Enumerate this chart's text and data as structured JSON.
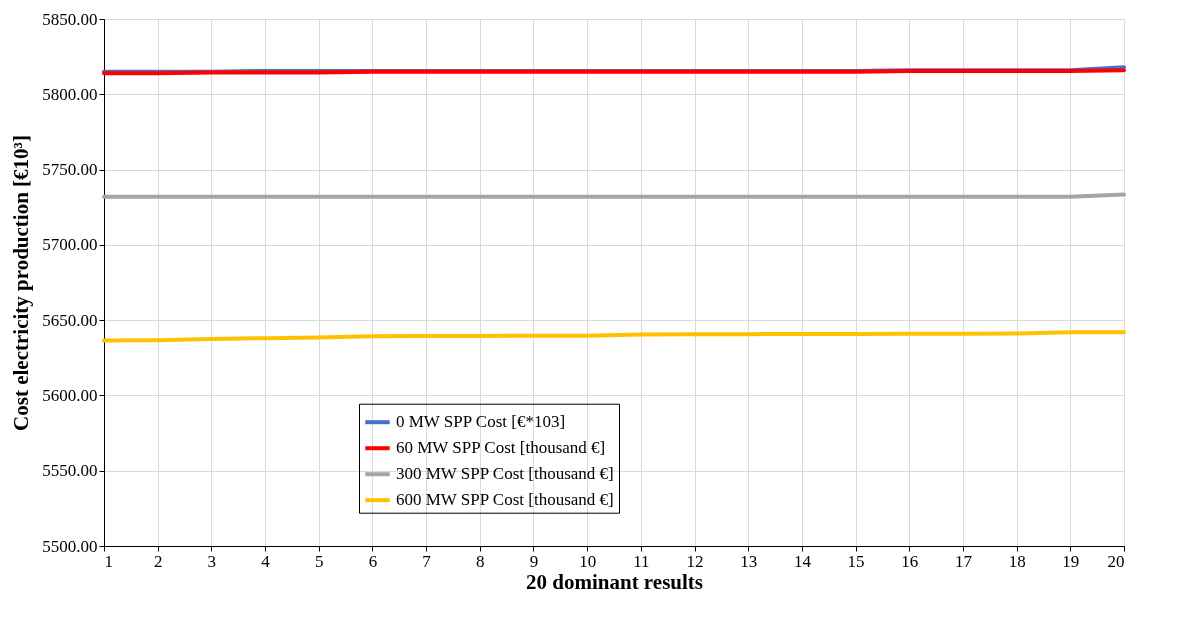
{
  "chart_data": {
    "type": "line",
    "xlabel": "20 dominant results",
    "ylabel": "Cost electricity production [€10³]",
    "x": [
      1,
      2,
      3,
      4,
      5,
      6,
      7,
      8,
      9,
      10,
      11,
      12,
      13,
      14,
      15,
      16,
      17,
      18,
      19,
      20
    ],
    "xlim": [
      1,
      20
    ],
    "xticks": [
      1,
      2,
      3,
      4,
      5,
      6,
      7,
      8,
      9,
      10,
      11,
      12,
      13,
      14,
      15,
      16,
      17,
      18,
      19,
      20
    ],
    "ylim": [
      5500,
      5850
    ],
    "yticks": [
      {
        "value": 5500,
        "label": "5500.00"
      },
      {
        "value": 5550,
        "label": "5550.00"
      },
      {
        "value": 5600,
        "label": "5600.00"
      },
      {
        "value": 5650,
        "label": "5650.00"
      },
      {
        "value": 5700,
        "label": "5700.00"
      },
      {
        "value": 5750,
        "label": "5750.00"
      },
      {
        "value": 5800,
        "label": "5800.00"
      },
      {
        "value": 5850,
        "label": "5850.00"
      }
    ],
    "grid": true,
    "legend": "bottom",
    "line_style": "solid",
    "marker": "none",
    "series": [
      {
        "name": "0 MW SPP Cost [€*103]",
        "color": "#4472c4",
        "values": [
          5815,
          5815,
          5815,
          5815.5,
          5815.5,
          5815.5,
          5815.5,
          5815.5,
          5815.5,
          5815.5,
          5815.5,
          5815.5,
          5815.5,
          5815.5,
          5815.5,
          5816,
          5816,
          5816,
          5816,
          5818
        ]
      },
      {
        "name": "60 MW SPP Cost [thousand €]",
        "color": "#ff0000",
        "values": [
          5814,
          5814,
          5814.5,
          5814.5,
          5814.5,
          5815,
          5815,
          5815,
          5815,
          5815,
          5815,
          5815,
          5815,
          5815,
          5815,
          5815.5,
          5815.5,
          5815.5,
          5815.5,
          5816
        ]
      },
      {
        "name": "300 MW SPP Cost [thousand €]",
        "color": "#a5a5a5",
        "values": [
          5732,
          5732,
          5732,
          5732,
          5732,
          5732,
          5732,
          5732,
          5732,
          5732,
          5732,
          5732,
          5732,
          5732,
          5732,
          5732,
          5732,
          5732,
          5732,
          5733.5
        ]
      },
      {
        "name": "600 MW SPP Cost [thousand €]",
        "color": "#ffc000",
        "values": [
          5636.5,
          5636.7,
          5637.5,
          5638,
          5638.5,
          5639.3,
          5639.5,
          5639.5,
          5639.6,
          5639.7,
          5640.5,
          5640.6,
          5640.7,
          5640.8,
          5640.8,
          5641,
          5641,
          5641.2,
          5642,
          5642
        ]
      }
    ]
  }
}
